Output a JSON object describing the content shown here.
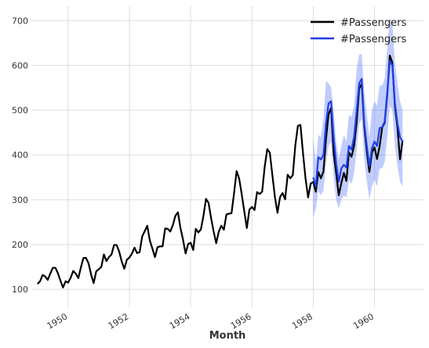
{
  "chart_data": {
    "type": "line",
    "title": "",
    "xlabel": "Month",
    "ylabel": "",
    "xlim": [
      1948.8,
      1961.6
    ],
    "ylim": [
      60,
      732
    ],
    "grid": true,
    "legend_position": "top-right",
    "xticks": [
      1950,
      1952,
      1954,
      1956,
      1958,
      1960
    ],
    "yticks": [
      100,
      200,
      300,
      400,
      500,
      600,
      700
    ],
    "start_year": 1949,
    "series": [
      {
        "name": "#Passengers",
        "color": "#000000",
        "values": [
          112,
          118,
          132,
          129,
          121,
          135,
          148,
          148,
          136,
          119,
          104,
          118,
          115,
          126,
          141,
          135,
          125,
          149,
          170,
          170,
          158,
          133,
          114,
          140,
          145,
          150,
          178,
          163,
          172,
          178,
          199,
          199,
          184,
          162,
          146,
          166,
          171,
          180,
          193,
          181,
          183,
          218,
          230,
          242,
          209,
          191,
          172,
          194,
          196,
          196,
          236,
          235,
          229,
          243,
          264,
          272,
          237,
          211,
          180,
          201,
          204,
          188,
          235,
          227,
          234,
          264,
          302,
          293,
          259,
          229,
          203,
          229,
          242,
          233,
          267,
          269,
          270,
          315,
          364,
          347,
          312,
          274,
          237,
          278,
          284,
          277,
          317,
          313,
          318,
          374,
          413,
          405,
          355,
          306,
          271,
          306,
          315,
          301,
          356,
          348,
          355,
          422,
          465,
          467,
          404,
          347,
          305,
          336,
          340,
          318,
          362,
          348,
          363,
          435,
          491,
          505,
          404,
          359,
          310,
          337,
          360,
          342,
          406,
          396,
          420,
          472,
          548,
          559,
          463,
          407,
          362,
          405,
          417,
          391,
          419,
          461,
          472,
          535,
          622,
          606,
          508,
          461,
          390,
          432
        ]
      },
      {
        "name": "#Passengers",
        "color": "#1f3fe6",
        "start_index": 108,
        "values": [
          350,
          330,
          395,
          390,
          400,
          470,
          515,
          520,
          440,
          380,
          340,
          370,
          378,
          372,
          420,
          412,
          440,
          498,
          560,
          570,
          470,
          420,
          375,
          415,
          430,
          420,
          460,
          462,
          475,
          540,
          610,
          600,
          515,
          470,
          440,
          430
        ]
      }
    ],
    "confidence_band": {
      "color": "#4a6cf7",
      "start_index": 108,
      "lower": [
        260,
        280,
        320,
        310,
        320,
        380,
        420,
        430,
        350,
        300,
        280,
        300,
        310,
        305,
        345,
        335,
        360,
        410,
        470,
        480,
        390,
        340,
        300,
        330,
        345,
        330,
        370,
        370,
        385,
        440,
        510,
        500,
        420,
        375,
        340,
        330
      ],
      "upper": [
        440,
        385,
        445,
        440,
        480,
        565,
        560,
        550,
        500,
        430,
        390,
        420,
        445,
        430,
        490,
        485,
        510,
        590,
        625,
        625,
        540,
        490,
        440,
        500,
        520,
        510,
        555,
        555,
        570,
        640,
        705,
        695,
        605,
        560,
        520,
        500
      ]
    }
  }
}
